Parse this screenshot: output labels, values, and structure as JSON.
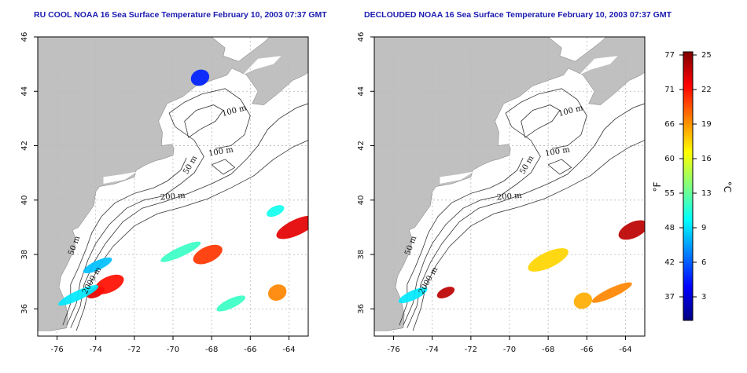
{
  "panels": [
    {
      "title": "RU COOL NOAA 16 Sea Surface Temperature February 10, 2003 07:37 GMT",
      "x_ticks": [
        "-76",
        "-74",
        "-72",
        "-70",
        "-68",
        "-66",
        "-64"
      ],
      "y_ticks": [
        "36",
        "38",
        "40",
        "42",
        "44",
        "46"
      ],
      "isobath_labels": [
        "100 m",
        "100 m",
        "50 m",
        "200 m",
        "50 m",
        "2000 m"
      ],
      "extent": {
        "lon": [
          -77.0,
          -63.0
        ],
        "lat": [
          35.0,
          46.0
        ]
      },
      "sst_patches": [
        {
          "lon": -74.0,
          "lat": 36.6,
          "temp_c": 23
        },
        {
          "lon": -73.3,
          "lat": 36.9,
          "temp_c": 22
        },
        {
          "lon": -74.9,
          "lat": 36.5,
          "temp_c": 9
        },
        {
          "lon": -64.6,
          "lat": 36.6,
          "temp_c": 19
        },
        {
          "lon": -67.0,
          "lat": 36.2,
          "temp_c": 11
        },
        {
          "lon": -63.6,
          "lat": 39.0,
          "temp_c": 23
        },
        {
          "lon": -64.7,
          "lat": 39.6,
          "temp_c": 10
        },
        {
          "lon": -68.2,
          "lat": 38.0,
          "temp_c": 21
        },
        {
          "lon": -69.6,
          "lat": 38.1,
          "temp_c": 11
        },
        {
          "lon": -68.6,
          "lat": 44.5,
          "temp_c": 4
        },
        {
          "lon": -73.9,
          "lat": 37.6,
          "temp_c": 8
        }
      ]
    },
    {
      "title": "DECLOUDED NOAA 16 Sea Surface Temperature February 10, 2003 07:37 GMT",
      "x_ticks": [
        "-76",
        "-74",
        "-72",
        "-70",
        "-68",
        "-66",
        "-64"
      ],
      "y_ticks": [
        "36",
        "38",
        "40",
        "42",
        "44",
        "46"
      ],
      "isobath_labels": [
        "100 m",
        "100 m",
        "50 m",
        "200 m",
        "50 m",
        "2000 m"
      ],
      "extent": {
        "lon": [
          -77.0,
          -63.0
        ],
        "lat": [
          35.0,
          46.0
        ]
      },
      "sst_patches": [
        {
          "lon": -73.3,
          "lat": 36.6,
          "temp_c": 24
        },
        {
          "lon": -63.6,
          "lat": 38.9,
          "temp_c": 24
        },
        {
          "lon": -64.7,
          "lat": 36.6,
          "temp_c": 19
        },
        {
          "lon": -66.2,
          "lat": 36.3,
          "temp_c": 18
        },
        {
          "lon": -75.0,
          "lat": 36.5,
          "temp_c": 9
        },
        {
          "lon": -68.0,
          "lat": 37.8,
          "temp_c": 17
        }
      ]
    }
  ],
  "colorbar": {
    "f_ticks": [
      "77",
      "71",
      "66",
      "60",
      "55",
      "48",
      "42",
      "37"
    ],
    "c_ticks": [
      "25",
      "22",
      "19",
      "16",
      "13",
      "9",
      "6",
      "3"
    ],
    "f_label": "°F",
    "c_label": "°C",
    "range_c": [
      0,
      25.5
    ],
    "colors": [
      "#000080",
      "#0000ff",
      "#0080ff",
      "#00ffff",
      "#80ff80",
      "#ffff00",
      "#ff8000",
      "#ff0000",
      "#800000"
    ]
  },
  "colors": {
    "land": "#c0c0c0",
    "ocean": "#ffffff",
    "title": "#1a1ab0",
    "grid": "#b8b8b8"
  }
}
